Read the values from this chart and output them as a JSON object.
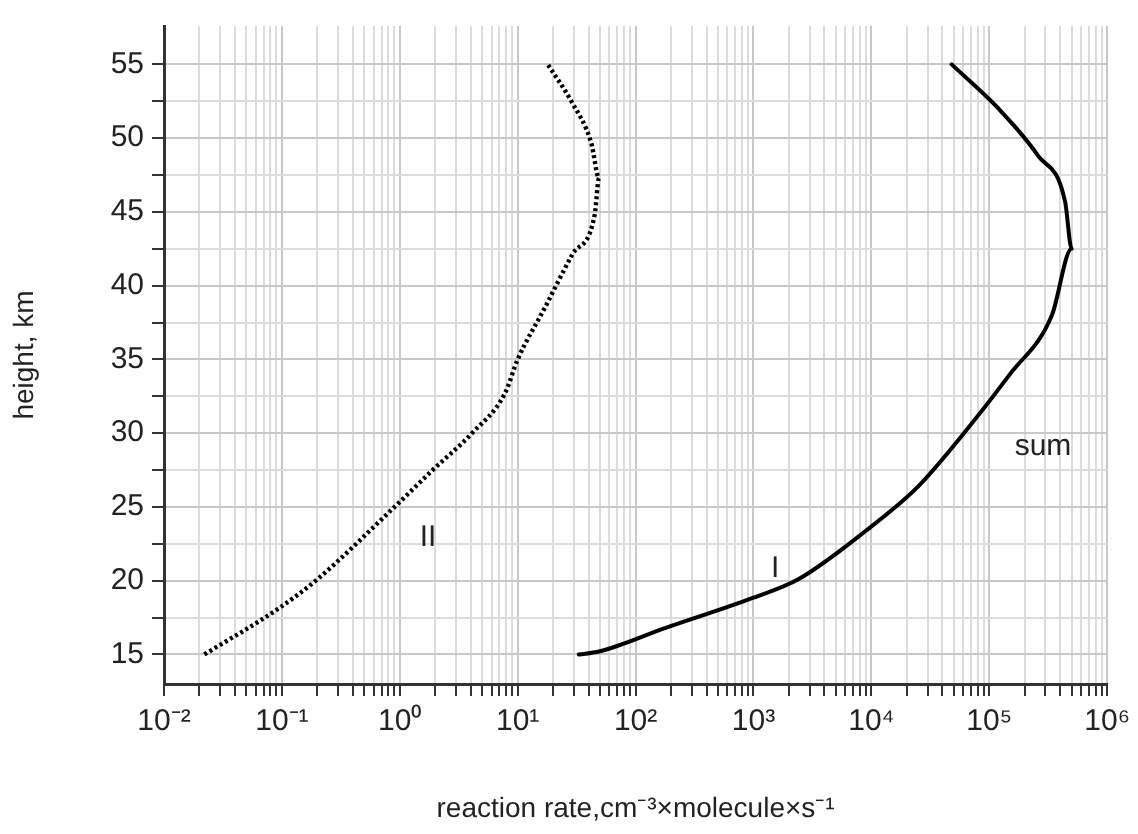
{
  "chart_data": {
    "type": "line",
    "xlabel": "reaction rate,cm⁻³×molecule×s⁻¹",
    "ylabel": "height, km",
    "log": "x",
    "grid": true,
    "marker": "none",
    "xlim": [
      0.01,
      1000000
    ],
    "ylim": [
      13,
      57.6
    ],
    "xticks": [
      {
        "value": 0.01,
        "label": "10⁻²"
      },
      {
        "value": 0.02,
        "label": null
      },
      {
        "value": 0.03,
        "label": null
      },
      {
        "value": 0.04,
        "label": null
      },
      {
        "value": 0.05,
        "label": null
      },
      {
        "value": 0.06,
        "label": null
      },
      {
        "value": 0.07,
        "label": null
      },
      {
        "value": 0.08,
        "label": null
      },
      {
        "value": 0.09,
        "label": null
      },
      {
        "value": 0.1,
        "label": "10⁻¹"
      },
      {
        "value": 0.2,
        "label": null
      },
      {
        "value": 0.3,
        "label": null
      },
      {
        "value": 0.4,
        "label": null
      },
      {
        "value": 0.5,
        "label": null
      },
      {
        "value": 0.6,
        "label": null
      },
      {
        "value": 0.7,
        "label": null
      },
      {
        "value": 0.8,
        "label": null
      },
      {
        "value": 0.9,
        "label": null
      },
      {
        "value": 1,
        "label": "10⁰"
      },
      {
        "value": 2,
        "label": null
      },
      {
        "value": 3,
        "label": null
      },
      {
        "value": 4,
        "label": null
      },
      {
        "value": 5,
        "label": null
      },
      {
        "value": 6,
        "label": null
      },
      {
        "value": 7,
        "label": null
      },
      {
        "value": 8,
        "label": null
      },
      {
        "value": 9,
        "label": null
      },
      {
        "value": 10,
        "label": "10¹"
      },
      {
        "value": 20,
        "label": null
      },
      {
        "value": 30,
        "label": null
      },
      {
        "value": 40,
        "label": null
      },
      {
        "value": 50,
        "label": null
      },
      {
        "value": 60,
        "label": null
      },
      {
        "value": 70,
        "label": null
      },
      {
        "value": 80,
        "label": null
      },
      {
        "value": 90,
        "label": null
      },
      {
        "value": 100,
        "label": "10²"
      },
      {
        "value": 200,
        "label": null
      },
      {
        "value": 300,
        "label": null
      },
      {
        "value": 400,
        "label": null
      },
      {
        "value": 500,
        "label": null
      },
      {
        "value": 600,
        "label": null
      },
      {
        "value": 700,
        "label": null
      },
      {
        "value": 800,
        "label": null
      },
      {
        "value": 900,
        "label": null
      },
      {
        "value": 1000,
        "label": "10³"
      },
      {
        "value": 2000,
        "label": null
      },
      {
        "value": 3000,
        "label": null
      },
      {
        "value": 4000,
        "label": null
      },
      {
        "value": 5000,
        "label": null
      },
      {
        "value": 6000,
        "label": null
      },
      {
        "value": 7000,
        "label": null
      },
      {
        "value": 8000,
        "label": null
      },
      {
        "value": 9000,
        "label": null
      },
      {
        "value": 10000,
        "label": "10⁴"
      },
      {
        "value": 20000,
        "label": null
      },
      {
        "value": 30000,
        "label": null
      },
      {
        "value": 40000,
        "label": null
      },
      {
        "value": 50000,
        "label": null
      },
      {
        "value": 60000,
        "label": null
      },
      {
        "value": 70000,
        "label": null
      },
      {
        "value": 80000,
        "label": null
      },
      {
        "value": 90000,
        "label": null
      },
      {
        "value": 100000,
        "label": "10⁵"
      },
      {
        "value": 200000,
        "label": null
      },
      {
        "value": 300000,
        "label": null
      },
      {
        "value": 400000,
        "label": null
      },
      {
        "value": 500000,
        "label": null
      },
      {
        "value": 600000,
        "label": null
      },
      {
        "value": 700000,
        "label": null
      },
      {
        "value": 800000,
        "label": null
      },
      {
        "value": 900000,
        "label": null
      },
      {
        "value": 1000000,
        "label": "10⁶"
      }
    ],
    "yticks": [
      15,
      {
        "value": 17.5,
        "label": null
      },
      20,
      {
        "value": 22.5,
        "label": null
      },
      25,
      {
        "value": 27.5,
        "label": null
      },
      30,
      {
        "value": 32.5,
        "label": null
      },
      35,
      {
        "value": 37.5,
        "label": null
      },
      40,
      {
        "value": 42.5,
        "label": null
      },
      45,
      {
        "value": 47.5,
        "label": null
      },
      50,
      {
        "value": 52.5,
        "label": null
      },
      55
    ],
    "series": [
      {
        "color": "#000000",
        "line_style": "dotted",
        "x": [
          0.022,
          0.093,
          0.2,
          0.85,
          1.9,
          4.1,
          7.8,
          10,
          17,
          29,
          45,
          49,
          42,
          29,
          18
        ],
        "values": [
          15,
          18.1,
          20.1,
          24.8,
          27.5,
          30,
          32.7,
          35,
          38.5,
          42.1,
          44.8,
          47.3,
          49.7,
          52.4,
          55
        ]
      },
      {
        "color": "#000000",
        "line_style": "solid",
        "x": [
          33,
          49,
          180,
          960,
          2400,
          8700,
          25000,
          61000,
          150000,
          340000,
          500000,
          440000,
          260000,
          120000,
          48000
        ],
        "values": [
          15,
          15.2,
          16.8,
          18.8,
          20.1,
          23.3,
          26.4,
          30,
          34,
          38,
          42.5,
          45.7,
          48.8,
          52,
          55
        ]
      }
    ],
    "annotations": [
      "II",
      {
        "text": "I",
        "x": 2100,
        "y": 20.3
      },
      "sum"
    ]
  }
}
